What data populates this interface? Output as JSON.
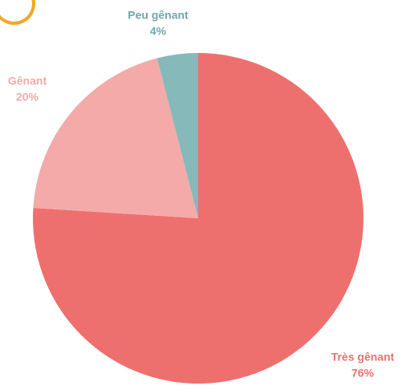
{
  "chart_data": {
    "type": "pie",
    "categories": [
      "Très gênant",
      "Gênant",
      "Peu gênant"
    ],
    "values": [
      76,
      20,
      4
    ],
    "value_labels": [
      "76%",
      "20%",
      "4%"
    ],
    "colors": [
      "#ee706e",
      "#f4aaa9",
      "#86b9b9"
    ]
  }
}
